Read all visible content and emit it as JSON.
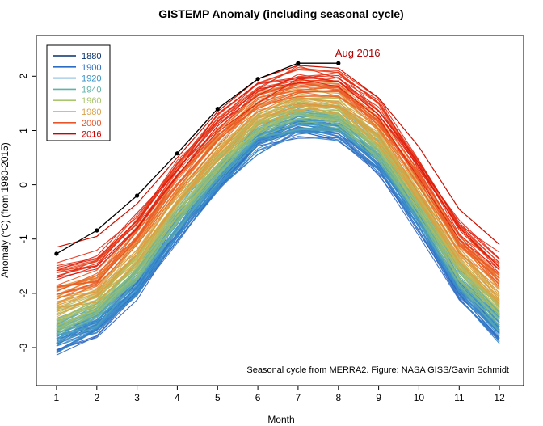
{
  "chart_data": {
    "type": "line",
    "title": "GISTEMP Anomaly (including seasonal cycle)",
    "xlabel": "Month",
    "ylabel": "Anomaly (°C) (from 1980-2015)",
    "xlim": [
      0.5,
      12.6
    ],
    "ylim": [
      -3.7,
      2.75
    ],
    "x_ticks": [
      1,
      2,
      3,
      4,
      5,
      6,
      7,
      8,
      9,
      10,
      11,
      12
    ],
    "y_ticks": [
      -3,
      -2,
      -1,
      0,
      1,
      2
    ],
    "legend": {
      "position": "top-left",
      "entries": [
        {
          "label": "1880",
          "color": "#08306b"
        },
        {
          "label": "1900",
          "color": "#2b6cc4"
        },
        {
          "label": "1920",
          "color": "#3a92c8"
        },
        {
          "label": "1940",
          "color": "#5fb3a8"
        },
        {
          "label": "1960",
          "color": "#a8c66c"
        },
        {
          "label": "1980",
          "color": "#d9a24a"
        },
        {
          "label": "2000",
          "color": "#e8552a"
        },
        {
          "label": "2016",
          "color": "#cc0000"
        }
      ]
    },
    "ensemble": {
      "year_start": 1880,
      "year_end": 2015,
      "note": "one line per year, colored from blue (1880) to red (2015)",
      "baseline_1880": [
        -2.95,
        -2.65,
        -1.95,
        -0.9,
        0.0,
        0.75,
        1.05,
        0.98,
        0.35,
        -0.7,
        -1.95,
        -2.75
      ],
      "baseline_2015": [
        -1.6,
        -1.4,
        -0.6,
        0.35,
        1.2,
        1.8,
        2.05,
        2.0,
        1.45,
        0.4,
        -0.75,
        -1.4
      ]
    },
    "series": [
      {
        "name": "2016",
        "color": "#000000",
        "x": [
          1,
          2,
          3,
          4,
          5,
          6,
          7,
          8
        ],
        "values": [
          -1.27,
          -0.84,
          -0.2,
          0.58,
          1.4,
          1.95,
          2.24,
          2.24
        ]
      }
    ],
    "annotations": [
      {
        "text": "Aug 2016",
        "x": 8,
        "y": 2.24
      },
      {
        "text": "Seasonal cycle from MERRA2. Figure: NASA GISS/Gavin Schmidt"
      }
    ]
  }
}
